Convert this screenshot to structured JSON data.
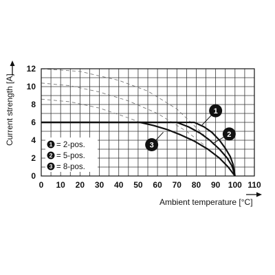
{
  "chart_data": {
    "type": "line",
    "xlabel": "Ambient temperature [°C]",
    "ylabel": "Current strength [A]",
    "xlim": [
      0,
      110
    ],
    "ylim": [
      0,
      12
    ],
    "x_ticks": [
      "0",
      "10",
      "20",
      "30",
      "40",
      "50",
      "60",
      "70",
      "80",
      "90",
      "100",
      "110"
    ],
    "y_ticks": [
      "0",
      "2",
      "4",
      "6",
      "8",
      "10",
      "12"
    ],
    "x_grid_step": 5,
    "y_grid_step": 1,
    "grid": true,
    "series": [
      {
        "name": "2-pos.",
        "marker_label": "1",
        "line_style": "solid",
        "points": [
          [
            0,
            6
          ],
          [
            79,
            6
          ],
          [
            84,
            5.5
          ],
          [
            88,
            4.9
          ],
          [
            92,
            4.0
          ],
          [
            95,
            3.1
          ],
          [
            97.5,
            2.2
          ],
          [
            99,
            1.3
          ],
          [
            100,
            0
          ]
        ]
      },
      {
        "name": "5-pos.",
        "marker_label": "2",
        "line_style": "solid",
        "points": [
          [
            0,
            6
          ],
          [
            70,
            6
          ],
          [
            76,
            5.5
          ],
          [
            82,
            4.8
          ],
          [
            87,
            4.0
          ],
          [
            92,
            3.0
          ],
          [
            96,
            2.0
          ],
          [
            98.5,
            1.1
          ],
          [
            100,
            0
          ]
        ]
      },
      {
        "name": "8-pos.",
        "marker_label": "3",
        "line_style": "solid",
        "points": [
          [
            0,
            6
          ],
          [
            51,
            6
          ],
          [
            58,
            5.65
          ],
          [
            65,
            5.2
          ],
          [
            72,
            4.6
          ],
          [
            79,
            3.9
          ],
          [
            86,
            3.0
          ],
          [
            92,
            2.0
          ],
          [
            96.5,
            1.0
          ],
          [
            100,
            0
          ]
        ]
      },
      {
        "name": "",
        "line_style": "dashed",
        "points": [
          [
            0,
            12
          ],
          [
            20,
            11.7
          ],
          [
            40,
            10.7
          ],
          [
            55,
            9.5
          ],
          [
            70,
            7.5
          ],
          [
            82,
            5.0
          ],
          [
            90,
            3.3
          ]
        ]
      },
      {
        "name": "",
        "line_style": "dashed",
        "points": [
          [
            0,
            10.4
          ],
          [
            15,
            10.1
          ],
          [
            30,
            9.4
          ],
          [
            45,
            8.4
          ],
          [
            60,
            7.0
          ],
          [
            75,
            5.0
          ],
          [
            85,
            3.3
          ]
        ]
      },
      {
        "name": "",
        "line_style": "dashed",
        "points": [
          [
            0,
            8.6
          ],
          [
            15,
            8.3
          ],
          [
            30,
            7.6
          ],
          [
            45,
            6.5
          ],
          [
            51,
            6.0
          ]
        ]
      }
    ],
    "callouts": [
      {
        "label": "1",
        "circle": [
          90,
          7.3
        ],
        "leader_to": [
          83,
          5.7
        ]
      },
      {
        "label": "2",
        "circle": [
          97,
          4.7
        ],
        "leader_to": [
          89,
          3.7
        ]
      },
      {
        "label": "3",
        "circle": [
          57,
          3.5
        ],
        "leader_to": [
          63,
          4.9
        ]
      }
    ],
    "legend": {
      "position": "lower-left",
      "entries": [
        {
          "num": "1",
          "text": "= 2-pos."
        },
        {
          "num": "2",
          "text": "= 5-pos."
        },
        {
          "num": "3",
          "text": "= 8-pos."
        }
      ]
    }
  }
}
